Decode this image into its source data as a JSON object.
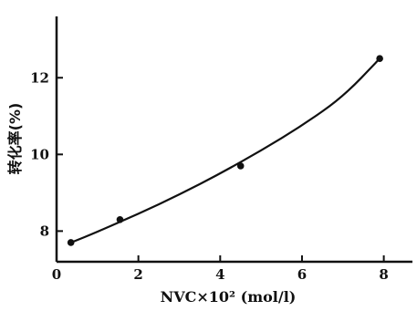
{
  "chart_data": {
    "type": "scatter",
    "xlabel": "NVC×10² (mol/l)",
    "ylabel": "转化率(%)",
    "xlim": [
      0,
      8.7
    ],
    "ylim": [
      7.2,
      13.6
    ],
    "x_ticks": [
      "0",
      "2",
      "4",
      "6",
      "8"
    ],
    "y_ticks": [
      "8",
      "10",
      "12"
    ],
    "grid": false,
    "points": [
      {
        "x": 0.35,
        "y": 7.7
      },
      {
        "x": 1.55,
        "y": 8.3
      },
      {
        "x": 4.5,
        "y": 9.7
      },
      {
        "x": 7.9,
        "y": 12.5
      }
    ],
    "fit_curve": {
      "x": [
        0.35,
        1.0,
        2.0,
        3.0,
        4.0,
        5.0,
        6.0,
        7.0,
        7.9
      ],
      "y": [
        7.7,
        7.98,
        8.45,
        8.95,
        9.5,
        10.1,
        10.75,
        11.5,
        12.5
      ]
    }
  }
}
